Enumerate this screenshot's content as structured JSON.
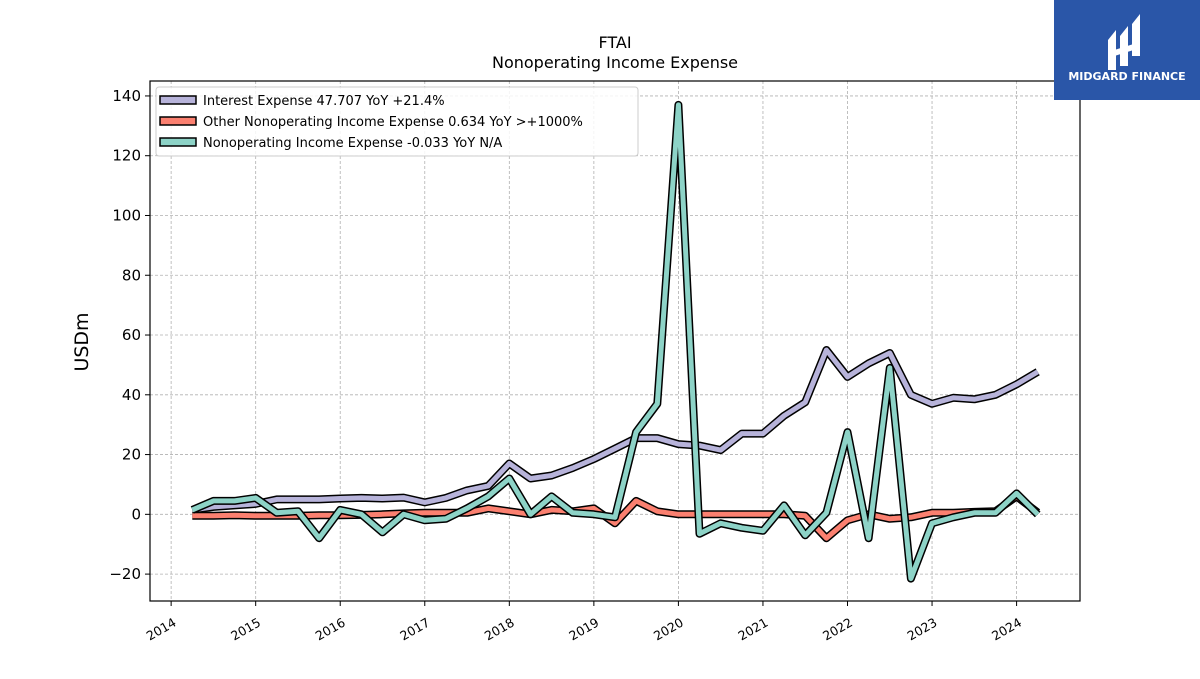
{
  "chart_data": {
    "type": "line",
    "title": "FTAI",
    "subtitle": "Nonoperating Income Expense",
    "xlabel": "",
    "ylabel": "USDm",
    "ylim": [
      -29,
      145
    ],
    "yticks": [
      -20,
      0,
      20,
      40,
      60,
      80,
      100,
      120,
      140
    ],
    "xlim": [
      2013.75,
      2024.75
    ],
    "xticks": [
      "2014",
      "2015",
      "2016",
      "2017",
      "2018",
      "2019",
      "2020",
      "2021",
      "2022",
      "2023",
      "2024"
    ],
    "grid": true,
    "legend_position": "top-left",
    "x": [
      2014.25,
      2014.5,
      2014.75,
      2015.0,
      2015.25,
      2015.5,
      2015.75,
      2016.0,
      2016.25,
      2016.5,
      2016.75,
      2017.0,
      2017.25,
      2017.5,
      2017.75,
      2018.0,
      2018.25,
      2018.5,
      2018.75,
      2019.0,
      2019.25,
      2019.5,
      2019.75,
      2020.0,
      2020.25,
      2020.5,
      2020.75,
      2021.0,
      2021.25,
      2021.5,
      2021.75,
      2022.0,
      2022.25,
      2022.5,
      2022.75,
      2023.0,
      2023.25,
      2023.5,
      2023.75,
      2024.0,
      2024.25
    ],
    "series": [
      {
        "name": "Interest Expense  47.707 YoY +21.4%",
        "color": "#b7b3da",
        "values": [
          1.5,
          2.5,
          3.0,
          3.5,
          5.0,
          5.0,
          5.0,
          5.3,
          5.5,
          5.3,
          5.6,
          4.0,
          5.5,
          8.0,
          9.5,
          17.0,
          12.0,
          13.0,
          15.5,
          18.5,
          22.0,
          25.5,
          25.5,
          23.5,
          23.0,
          21.5,
          27.0,
          27.0,
          33.0,
          37.5,
          55.0,
          46.0,
          50.5,
          54.0,
          40.0,
          37.0,
          39.0,
          38.5,
          40.0,
          43.5,
          47.7
        ]
      },
      {
        "name": "Other Nonoperating Income Expense  0.634 YoY >+1000%",
        "color": "#fb8070",
        "values": [
          -0.5,
          -0.5,
          -0.3,
          -0.5,
          -0.5,
          -0.5,
          -0.3,
          -0.3,
          -0.2,
          0.0,
          0.3,
          0.5,
          0.5,
          0.5,
          2.0,
          1.0,
          0.0,
          1.5,
          1.0,
          2.0,
          -3.0,
          4.5,
          1.0,
          0.0,
          0.0,
          0.0,
          0.0,
          0.0,
          0.0,
          -0.5,
          -8.0,
          -2.0,
          0.0,
          -1.5,
          -1.0,
          0.5,
          0.5,
          0.8,
          1.0,
          6.0,
          0.6
        ]
      },
      {
        "name": "Nonoperating Income Expense  -0.033 YoY N/A",
        "color": "#8dd3c7",
        "values": [
          1.5,
          4.5,
          4.5,
          5.5,
          0.5,
          1.0,
          -8.0,
          1.5,
          0.0,
          -6.0,
          0.0,
          -2.0,
          -1.5,
          2.0,
          6.0,
          12.0,
          0.0,
          6.0,
          0.5,
          0.0,
          -1.0,
          27.5,
          37.0,
          137.0,
          -6.5,
          -3.0,
          -4.5,
          -5.5,
          3.0,
          -7.0,
          0.5,
          27.5,
          -8.0,
          49.0,
          -21.5,
          -3.0,
          -1.0,
          0.5,
          0.5,
          7.0,
          -0.03
        ]
      }
    ]
  },
  "logo": {
    "brand": "MIDGARD FINANCE",
    "background": "#2a56a8",
    "text_color": "#ffffff"
  }
}
